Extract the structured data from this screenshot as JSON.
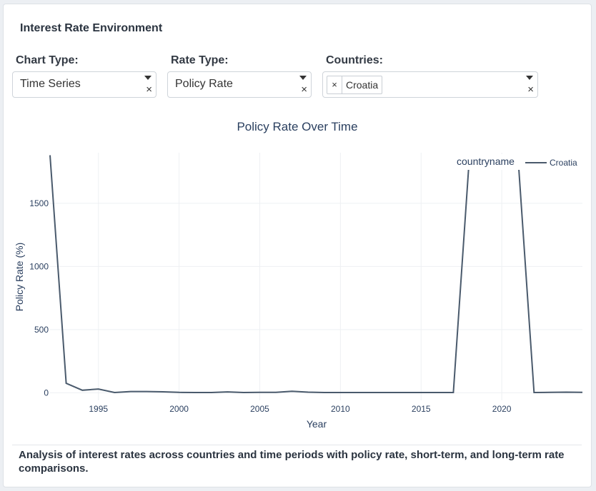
{
  "header": {
    "title": "Interest Rate Environment"
  },
  "controls": {
    "chart_type": {
      "label": "Chart Type:",
      "value": "Time Series",
      "clear": "×"
    },
    "rate_type": {
      "label": "Rate Type:",
      "value": "Policy Rate",
      "clear": "×"
    },
    "countries": {
      "label": "Countries:",
      "chips": [
        {
          "label": "Croatia",
          "remove": "×"
        }
      ],
      "clear": "×"
    }
  },
  "chart_data": {
    "type": "line",
    "title": "Policy Rate Over Time",
    "xlabel": "Year",
    "ylabel": "Policy Rate (%)",
    "xlim": [
      1992,
      2025
    ],
    "ylim": [
      -60,
      1900
    ],
    "x_ticks": [
      1995,
      2000,
      2005,
      2010,
      2015,
      2020
    ],
    "y_ticks": [
      0,
      500,
      1000,
      1500
    ],
    "grid": true,
    "legend": {
      "title": "countryname",
      "position": "top-right"
    },
    "line_color": "#4a5a6c",
    "series": [
      {
        "name": "Croatia",
        "x": [
          1992,
          1993,
          1994,
          1995,
          1996,
          1997,
          1998,
          1999,
          2000,
          2001,
          2002,
          2003,
          2004,
          2005,
          2006,
          2007,
          2008,
          2009,
          2010,
          2011,
          2012,
          2013,
          2014,
          2015,
          2016,
          2017,
          2018,
          2019,
          2020,
          2021,
          2022,
          2023,
          2024,
          2025
        ],
        "y": [
          1880,
          75,
          20,
          30,
          2,
          10,
          10,
          8,
          3,
          2,
          2,
          7,
          2,
          3,
          3,
          12,
          5,
          2,
          2,
          2,
          2,
          2,
          2,
          2,
          2,
          2,
          1880,
          1880,
          1880,
          1880,
          2,
          3,
          5,
          3
        ]
      }
    ]
  },
  "footer": {
    "description": "Analysis of interest rates across countries and time periods with policy rate, short-term, and long-term rate comparisons."
  }
}
